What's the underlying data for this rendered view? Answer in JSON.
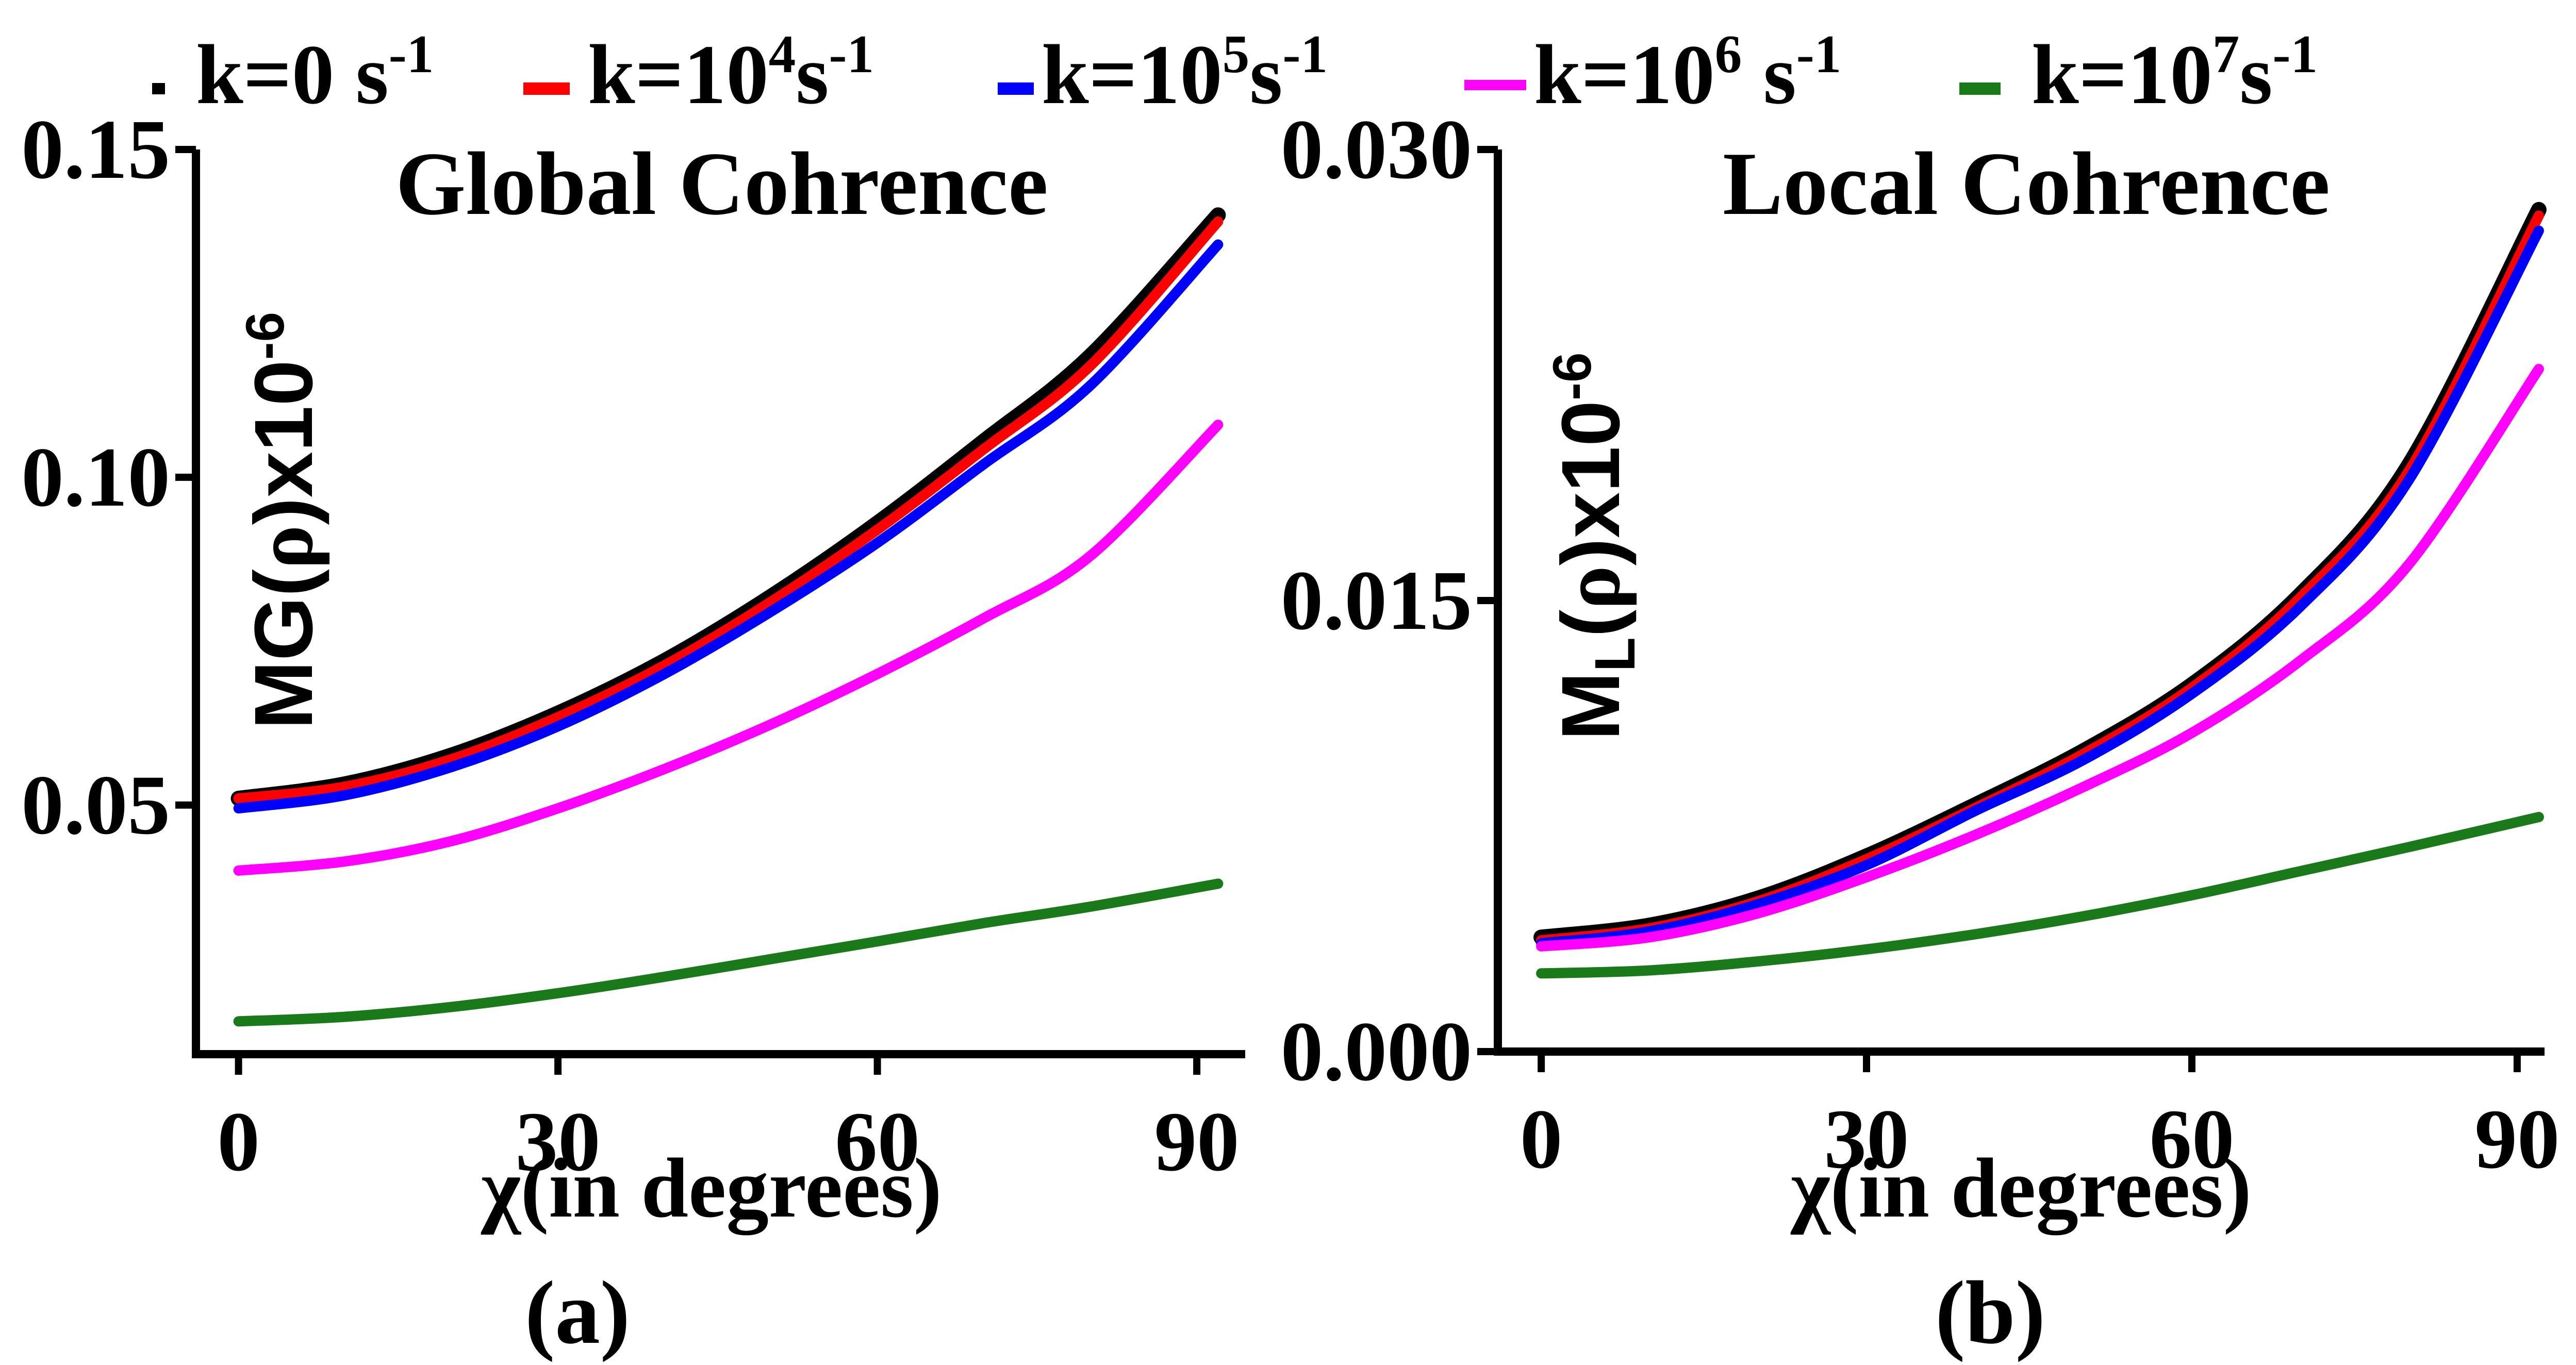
{
  "legend": [
    {
      "label": "k=0 s",
      "sup": "-1",
      "color": "#000000"
    },
    {
      "label": "k=10",
      "exp": "4",
      "unit": "s",
      "sup": "-1",
      "color": "#ff0000"
    },
    {
      "label": "k=10",
      "exp": "5",
      "unit": "s",
      "sup": "-1",
      "color": "#0000ff"
    },
    {
      "label": "k=10",
      "exp": "6",
      "unit": " s",
      "sup": "-1",
      "color": "#ff00ff"
    },
    {
      "label": "k=10",
      "exp": "7",
      "unit": "s",
      "sup": "-1",
      "color": "#1a7a1a"
    }
  ],
  "chart_data": [
    {
      "type": "line",
      "panel_label": "(a)",
      "title": "Global Cohrence",
      "xlabel": "χ(in degrees)",
      "ylabel_main": "MG(",
      "ylabel_rho": "ρ",
      "ylabel_tail": ")x10",
      "ylabel_exp": "-6",
      "xlim": [
        -4,
        96
      ],
      "ylim": [
        0.012,
        0.15
      ],
      "xticks": [
        0,
        30,
        60,
        90
      ],
      "xtick_labels": [
        "0",
        "30",
        "60",
        "90"
      ],
      "yticks": [
        0.05,
        0.1,
        0.15
      ],
      "ytick_labels": [
        "0.05",
        "0.10",
        "0.15"
      ],
      "x": [
        0,
        10,
        20,
        30,
        40,
        50,
        60,
        70,
        80,
        92
      ],
      "series": [
        {
          "name": "k=0 s-1",
          "color": "#000000",
          "values": [
            0.051,
            0.0532,
            0.0576,
            0.064,
            0.072,
            0.0818,
            0.093,
            0.1055,
            0.1185,
            0.14
          ]
        },
        {
          "name": "k=10^4 s-1",
          "color": "#ff0000",
          "values": [
            0.051,
            0.0528,
            0.057,
            0.0634,
            0.0713,
            0.081,
            0.092,
            0.1043,
            0.117,
            0.139
          ]
        },
        {
          "name": "k=10^5 s-1",
          "color": "#0000ff",
          "values": [
            0.0495,
            0.0515,
            0.0558,
            0.062,
            0.07,
            0.0795,
            0.09,
            0.102,
            0.114,
            0.1355
          ]
        },
        {
          "name": "k=10^6 s-1",
          "color": "#ff00ff",
          "values": [
            0.04,
            0.0414,
            0.0445,
            0.0495,
            0.0555,
            0.0623,
            0.07,
            0.0785,
            0.088,
            0.108
          ]
        },
        {
          "name": "k=10^7 s-1",
          "color": "#1a7a1a",
          "values": [
            0.017,
            0.0177,
            0.0192,
            0.0213,
            0.0238,
            0.0265,
            0.0292,
            0.032,
            0.0345,
            0.038
          ]
        }
      ]
    },
    {
      "type": "line",
      "panel_label": "(b)",
      "title": "Local Cohrence",
      "xlabel": "χ(in degrees)",
      "ylabel_main": "M",
      "ylabel_sub": "L",
      "ylabel_paren": "(",
      "ylabel_rho": "ρ",
      "ylabel_tail": ")x10",
      "ylabel_exp": "-6",
      "xlim": [
        -4,
        94
      ],
      "ylim": [
        0.0,
        0.03
      ],
      "xticks": [
        0,
        30,
        60,
        90
      ],
      "xtick_labels": [
        "0",
        "30",
        "60",
        "90"
      ],
      "yticks": [
        0.0,
        0.015,
        0.03
      ],
      "ytick_labels": [
        "0.000",
        "0.015",
        "0.030"
      ],
      "x": [
        0,
        10,
        20,
        30,
        40,
        50,
        60,
        70,
        80,
        92
      ],
      "series": [
        {
          "name": "k=0 s-1",
          "color": "#000000",
          "values": [
            0.0038,
            0.0042,
            0.0051,
            0.0065,
            0.0082,
            0.01,
            0.0122,
            0.0152,
            0.0195,
            0.028
          ]
        },
        {
          "name": "k=10^4 s-1",
          "color": "#ff0000",
          "values": [
            0.0037,
            0.0041,
            0.005,
            0.0064,
            0.0081,
            0.0099,
            0.0121,
            0.0151,
            0.0193,
            0.0278
          ]
        },
        {
          "name": "k=10^5 s-1",
          "color": "#0000ff",
          "values": [
            0.0036,
            0.004,
            0.0049,
            0.0062,
            0.008,
            0.0097,
            0.0119,
            0.0148,
            0.019,
            0.0273
          ]
        },
        {
          "name": "k=10^6 s-1",
          "color": "#ff00ff",
          "values": [
            0.0035,
            0.0038,
            0.0046,
            0.0058,
            0.0072,
            0.0088,
            0.0106,
            0.013,
            0.0162,
            0.0227
          ]
        },
        {
          "name": "k=10^7 s-1",
          "color": "#1a7a1a",
          "values": [
            0.0026,
            0.0027,
            0.003,
            0.0034,
            0.0039,
            0.0045,
            0.0052,
            0.006,
            0.0068,
            0.0078
          ]
        }
      ]
    }
  ]
}
